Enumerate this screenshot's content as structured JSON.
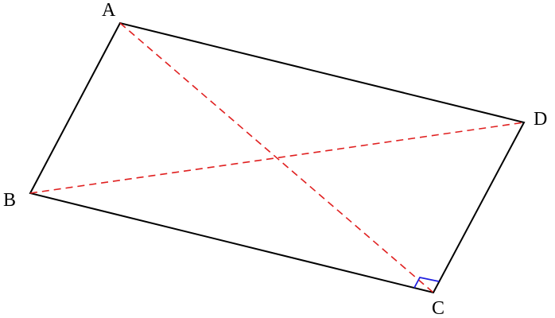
{
  "nodes": [
    {
      "label": "A"
    },
    {
      "label": "B"
    },
    {
      "label": "C"
    },
    {
      "label": "D"
    }
  ]
}
